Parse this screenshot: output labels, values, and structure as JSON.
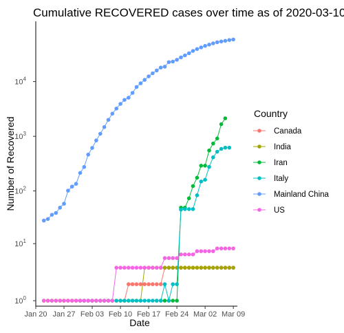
{
  "chart_data": {
    "type": "line",
    "title": "Cumulative RECOVERED cases over time as of  2020-03-10",
    "xlabel": "Date",
    "ylabel": "Number of Recovered",
    "y_scale": "log10(y+1)",
    "x_range": [
      "2020-01-20",
      "2020-03-10"
    ],
    "y_range": [
      0,
      100000
    ],
    "x_ticks": [
      {
        "date": "2020-01-20",
        "label": "Jan 20"
      },
      {
        "date": "2020-01-27",
        "label": "Jan 27"
      },
      {
        "date": "2020-02-03",
        "label": "Feb 03"
      },
      {
        "date": "2020-02-10",
        "label": "Feb 10"
      },
      {
        "date": "2020-02-17",
        "label": "Feb 17"
      },
      {
        "date": "2020-02-24",
        "label": "Feb 24"
      },
      {
        "date": "2020-03-02",
        "label": "Mar 02"
      },
      {
        "date": "2020-03-09",
        "label": "Mar 09"
      }
    ],
    "y_ticks": [
      {
        "value": 0,
        "base": "10",
        "exp": "0"
      },
      {
        "value": 10,
        "base": "10",
        "exp": "1"
      },
      {
        "value": 100,
        "base": "10",
        "exp": "2"
      },
      {
        "value": 1000,
        "base": "10",
        "exp": "3"
      },
      {
        "value": 10000,
        "base": "10",
        "exp": "4"
      }
    ],
    "grid": false,
    "legend": {
      "title": "Country",
      "position": "right"
    },
    "series": [
      {
        "name": "Canada",
        "color": "#F8766D",
        "points": [
          [
            "2020-01-22",
            0
          ],
          [
            "2020-01-23",
            0
          ],
          [
            "2020-01-24",
            0
          ],
          [
            "2020-01-25",
            0
          ],
          [
            "2020-01-26",
            0
          ],
          [
            "2020-01-27",
            0
          ],
          [
            "2020-01-28",
            0
          ],
          [
            "2020-01-29",
            0
          ],
          [
            "2020-01-30",
            0
          ],
          [
            "2020-01-31",
            0
          ],
          [
            "2020-02-01",
            0
          ],
          [
            "2020-02-02",
            0
          ],
          [
            "2020-02-03",
            0
          ],
          [
            "2020-02-04",
            0
          ],
          [
            "2020-02-05",
            0
          ],
          [
            "2020-02-06",
            0
          ],
          [
            "2020-02-07",
            0
          ],
          [
            "2020-02-08",
            0
          ],
          [
            "2020-02-09",
            0
          ],
          [
            "2020-02-10",
            0
          ],
          [
            "2020-02-11",
            0
          ],
          [
            "2020-02-12",
            1
          ],
          [
            "2020-02-13",
            1
          ],
          [
            "2020-02-14",
            1
          ],
          [
            "2020-02-15",
            1
          ],
          [
            "2020-02-16",
            1
          ],
          [
            "2020-02-17",
            1
          ],
          [
            "2020-02-18",
            1
          ],
          [
            "2020-02-19",
            1
          ],
          [
            "2020-02-20",
            1
          ],
          [
            "2020-02-21",
            3
          ],
          [
            "2020-02-22",
            3
          ],
          [
            "2020-02-23",
            3
          ],
          [
            "2020-02-24",
            3
          ],
          [
            "2020-02-25",
            3
          ],
          [
            "2020-02-26",
            3
          ],
          [
            "2020-02-27",
            3
          ],
          [
            "2020-02-28",
            3
          ],
          [
            "2020-02-29",
            3
          ],
          [
            "2020-03-01",
            3
          ],
          [
            "2020-03-02",
            3
          ],
          [
            "2020-03-03",
            3
          ],
          [
            "2020-03-04",
            3
          ],
          [
            "2020-03-05",
            3
          ],
          [
            "2020-03-06",
            3
          ],
          [
            "2020-03-07",
            3
          ],
          [
            "2020-03-08",
            3
          ],
          [
            "2020-03-09",
            3
          ]
        ]
      },
      {
        "name": "India",
        "color": "#A3A500",
        "points": [
          [
            "2020-01-22",
            0
          ],
          [
            "2020-01-23",
            0
          ],
          [
            "2020-01-24",
            0
          ],
          [
            "2020-01-25",
            0
          ],
          [
            "2020-01-26",
            0
          ],
          [
            "2020-01-27",
            0
          ],
          [
            "2020-01-28",
            0
          ],
          [
            "2020-01-29",
            0
          ],
          [
            "2020-01-30",
            0
          ],
          [
            "2020-01-31",
            0
          ],
          [
            "2020-02-01",
            0
          ],
          [
            "2020-02-02",
            0
          ],
          [
            "2020-02-03",
            0
          ],
          [
            "2020-02-04",
            0
          ],
          [
            "2020-02-05",
            0
          ],
          [
            "2020-02-06",
            0
          ],
          [
            "2020-02-07",
            0
          ],
          [
            "2020-02-08",
            0
          ],
          [
            "2020-02-09",
            0
          ],
          [
            "2020-02-10",
            0
          ],
          [
            "2020-02-11",
            0
          ],
          [
            "2020-02-12",
            0
          ],
          [
            "2020-02-13",
            0
          ],
          [
            "2020-02-14",
            0
          ],
          [
            "2020-02-15",
            0
          ],
          [
            "2020-02-16",
            3
          ],
          [
            "2020-02-17",
            3
          ],
          [
            "2020-02-18",
            3
          ],
          [
            "2020-02-19",
            3
          ],
          [
            "2020-02-20",
            3
          ],
          [
            "2020-02-21",
            3
          ],
          [
            "2020-02-22",
            3
          ],
          [
            "2020-02-23",
            3
          ],
          [
            "2020-02-24",
            3
          ],
          [
            "2020-02-25",
            3
          ],
          [
            "2020-02-26",
            3
          ],
          [
            "2020-02-27",
            3
          ],
          [
            "2020-02-28",
            3
          ],
          [
            "2020-02-29",
            3
          ],
          [
            "2020-03-01",
            3
          ],
          [
            "2020-03-02",
            3
          ],
          [
            "2020-03-03",
            3
          ],
          [
            "2020-03-04",
            3
          ],
          [
            "2020-03-05",
            3
          ],
          [
            "2020-03-06",
            3
          ],
          [
            "2020-03-07",
            3
          ],
          [
            "2020-03-08",
            3
          ],
          [
            "2020-03-09",
            3
          ]
        ]
      },
      {
        "name": "Iran",
        "color": "#00BA38",
        "points": [
          [
            "2020-02-19",
            0
          ],
          [
            "2020-02-20",
            0
          ],
          [
            "2020-02-21",
            0
          ],
          [
            "2020-02-22",
            0
          ],
          [
            "2020-02-23",
            0
          ],
          [
            "2020-02-24",
            0
          ],
          [
            "2020-02-25",
            49
          ],
          [
            "2020-02-26",
            49
          ],
          [
            "2020-02-27",
            73
          ],
          [
            "2020-02-28",
            123
          ],
          [
            "2020-02-29",
            175
          ],
          [
            "2020-03-01",
            291
          ],
          [
            "2020-03-02",
            291
          ],
          [
            "2020-03-03",
            552
          ],
          [
            "2020-03-04",
            739
          ],
          [
            "2020-03-05",
            913
          ],
          [
            "2020-03-06",
            1669
          ],
          [
            "2020-03-07",
            2134
          ]
        ]
      },
      {
        "name": "Italy",
        "color": "#00BFC4",
        "points": [
          [
            "2020-01-31",
            0
          ],
          [
            "2020-02-01",
            0
          ],
          [
            "2020-02-02",
            0
          ],
          [
            "2020-02-03",
            0
          ],
          [
            "2020-02-04",
            0
          ],
          [
            "2020-02-05",
            0
          ],
          [
            "2020-02-06",
            0
          ],
          [
            "2020-02-07",
            0
          ],
          [
            "2020-02-08",
            0
          ],
          [
            "2020-02-09",
            0
          ],
          [
            "2020-02-10",
            0
          ],
          [
            "2020-02-11",
            0
          ],
          [
            "2020-02-12",
            0
          ],
          [
            "2020-02-13",
            0
          ],
          [
            "2020-02-14",
            0
          ],
          [
            "2020-02-15",
            0
          ],
          [
            "2020-02-16",
            0
          ],
          [
            "2020-02-17",
            0
          ],
          [
            "2020-02-18",
            0
          ],
          [
            "2020-02-19",
            0
          ],
          [
            "2020-02-20",
            0
          ],
          [
            "2020-02-21",
            1
          ],
          [
            "2020-02-22",
            0
          ],
          [
            "2020-02-23",
            1
          ],
          [
            "2020-02-24",
            1
          ],
          [
            "2020-02-25",
            45
          ],
          [
            "2020-02-26",
            46
          ],
          [
            "2020-02-27",
            46
          ],
          [
            "2020-02-28",
            46
          ],
          [
            "2020-02-29",
            83
          ],
          [
            "2020-03-01",
            149
          ],
          [
            "2020-03-02",
            160
          ],
          [
            "2020-03-03",
            276
          ],
          [
            "2020-03-04",
            414
          ],
          [
            "2020-03-05",
            523
          ],
          [
            "2020-03-06",
            589
          ],
          [
            "2020-03-07",
            622
          ],
          [
            "2020-03-08",
            622
          ]
        ]
      },
      {
        "name": "Mainland China",
        "color": "#619CFF",
        "points": [
          [
            "2020-01-22",
            28
          ],
          [
            "2020-01-23",
            30
          ],
          [
            "2020-01-24",
            36
          ],
          [
            "2020-01-25",
            39
          ],
          [
            "2020-01-26",
            49
          ],
          [
            "2020-01-27",
            58
          ],
          [
            "2020-01-28",
            101
          ],
          [
            "2020-01-29",
            120
          ],
          [
            "2020-01-30",
            135
          ],
          [
            "2020-01-31",
            214
          ],
          [
            "2020-02-01",
            275
          ],
          [
            "2020-02-02",
            463
          ],
          [
            "2020-02-03",
            614
          ],
          [
            "2020-02-04",
            843
          ],
          [
            "2020-02-05",
            1115
          ],
          [
            "2020-02-06",
            1476
          ],
          [
            "2020-02-07",
            1998
          ],
          [
            "2020-02-08",
            2595
          ],
          [
            "2020-02-09",
            3218
          ],
          [
            "2020-02-10",
            3917
          ],
          [
            "2020-02-11",
            4635
          ],
          [
            "2020-02-12",
            5079
          ],
          [
            "2020-02-13",
            6213
          ],
          [
            "2020-02-14",
            7973
          ],
          [
            "2020-02-15",
            9294
          ],
          [
            "2020-02-16",
            10748
          ],
          [
            "2020-02-17",
            12455
          ],
          [
            "2020-02-18",
            14199
          ],
          [
            "2020-02-19",
            15952
          ],
          [
            "2020-02-20",
            18002
          ],
          [
            "2020-02-21",
            18693
          ],
          [
            "2020-02-22",
            22687
          ],
          [
            "2020-02-23",
            23170
          ],
          [
            "2020-02-24",
            24990
          ],
          [
            "2020-02-25",
            27650
          ],
          [
            "2020-02-26",
            30053
          ],
          [
            "2020-02-27",
            32898
          ],
          [
            "2020-02-28",
            36291
          ],
          [
            "2020-02-29",
            39279
          ],
          [
            "2020-03-01",
            42118
          ],
          [
            "2020-03-02",
            44810
          ],
          [
            "2020-03-03",
            47404
          ],
          [
            "2020-03-04",
            49955
          ],
          [
            "2020-03-05",
            52240
          ],
          [
            "2020-03-06",
            53888
          ],
          [
            "2020-03-07",
            55478
          ],
          [
            "2020-03-08",
            57320
          ],
          [
            "2020-03-09",
            58735
          ]
        ]
      },
      {
        "name": "US",
        "color": "#F564E3",
        "points": [
          [
            "2020-01-22",
            0
          ],
          [
            "2020-01-23",
            0
          ],
          [
            "2020-01-24",
            0
          ],
          [
            "2020-01-25",
            0
          ],
          [
            "2020-01-26",
            0
          ],
          [
            "2020-01-27",
            0
          ],
          [
            "2020-01-28",
            0
          ],
          [
            "2020-01-29",
            0
          ],
          [
            "2020-01-30",
            0
          ],
          [
            "2020-01-31",
            0
          ],
          [
            "2020-02-01",
            0
          ],
          [
            "2020-02-02",
            0
          ],
          [
            "2020-02-03",
            0
          ],
          [
            "2020-02-04",
            0
          ],
          [
            "2020-02-05",
            0
          ],
          [
            "2020-02-06",
            0
          ],
          [
            "2020-02-07",
            0
          ],
          [
            "2020-02-08",
            0
          ],
          [
            "2020-02-09",
            3
          ],
          [
            "2020-02-10",
            3
          ],
          [
            "2020-02-11",
            3
          ],
          [
            "2020-02-12",
            3
          ],
          [
            "2020-02-13",
            3
          ],
          [
            "2020-02-14",
            3
          ],
          [
            "2020-02-15",
            3
          ],
          [
            "2020-02-16",
            3
          ],
          [
            "2020-02-17",
            3
          ],
          [
            "2020-02-18",
            3
          ],
          [
            "2020-02-19",
            3
          ],
          [
            "2020-02-20",
            3
          ],
          [
            "2020-02-21",
            5
          ],
          [
            "2020-02-22",
            5
          ],
          [
            "2020-02-23",
            5
          ],
          [
            "2020-02-24",
            5
          ],
          [
            "2020-02-25",
            6
          ],
          [
            "2020-02-26",
            6
          ],
          [
            "2020-02-27",
            6
          ],
          [
            "2020-02-28",
            6
          ],
          [
            "2020-02-29",
            7
          ],
          [
            "2020-03-01",
            7
          ],
          [
            "2020-03-02",
            7
          ],
          [
            "2020-03-03",
            7
          ],
          [
            "2020-03-04",
            7
          ],
          [
            "2020-03-05",
            8
          ],
          [
            "2020-03-06",
            8
          ],
          [
            "2020-03-07",
            8
          ],
          [
            "2020-03-08",
            8
          ],
          [
            "2020-03-09",
            8
          ]
        ]
      }
    ]
  }
}
